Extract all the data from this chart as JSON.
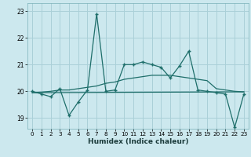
{
  "title": "",
  "xlabel": "Humidex (Indice chaleur)",
  "background_color": "#cce8ee",
  "grid_color": "#aad0d8",
  "line_color": "#1e6e6a",
  "xlim": [
    -0.5,
    23.5
  ],
  "ylim": [
    18.6,
    23.3
  ],
  "yticks": [
    19,
    20,
    21,
    22,
    23
  ],
  "xticks": [
    0,
    1,
    2,
    3,
    4,
    5,
    6,
    7,
    8,
    9,
    10,
    11,
    12,
    13,
    14,
    15,
    16,
    17,
    18,
    19,
    20,
    21,
    22,
    23
  ],
  "series1_x": [
    0,
    1,
    2,
    3,
    4,
    5,
    6,
    7,
    8,
    9,
    10,
    11,
    12,
    13,
    14,
    15,
    16,
    17,
    18,
    19,
    20,
    21,
    22,
    23
  ],
  "series1_y": [
    20.0,
    19.9,
    19.8,
    20.1,
    19.1,
    19.6,
    20.05,
    22.9,
    20.0,
    20.05,
    21.0,
    21.0,
    21.1,
    21.0,
    20.9,
    20.5,
    20.95,
    21.5,
    20.05,
    20.0,
    19.95,
    19.9,
    18.65,
    19.9
  ],
  "series2_x": [
    0,
    1,
    2,
    3,
    4,
    5,
    6,
    7,
    8,
    9,
    10,
    11,
    12,
    13,
    14,
    15,
    16,
    17,
    18,
    19,
    20,
    21,
    22,
    23
  ],
  "series2_y": [
    19.95,
    19.97,
    20.0,
    20.05,
    20.05,
    20.1,
    20.15,
    20.2,
    20.3,
    20.35,
    20.45,
    20.5,
    20.55,
    20.6,
    20.6,
    20.6,
    20.55,
    20.5,
    20.45,
    20.4,
    20.1,
    20.05,
    20.0,
    19.98
  ],
  "series3_x": [
    0,
    23
  ],
  "series3_y": [
    19.95,
    19.98
  ]
}
